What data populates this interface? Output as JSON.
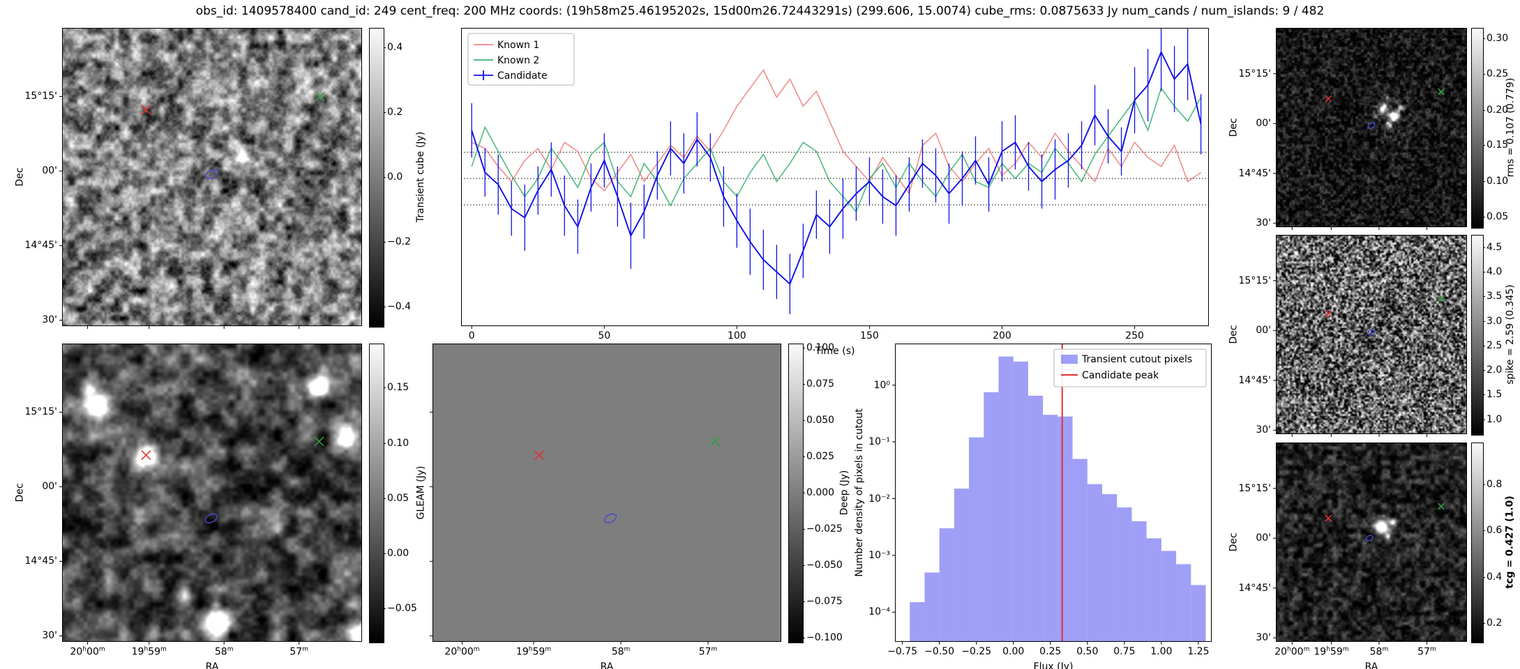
{
  "title": "obs_id: 1409578400 cand_id: 249 cent_freq: 200 MHz coords: (19h58m25.46195202s, 15d00m26.72443291s) (299.606, 15.0074) cube_rms: 0.0875633 Jy num_cands / num_islands: 9 / 482",
  "axis_labels": {
    "ra": "RA",
    "dec": "Dec"
  },
  "ra_ticks": [
    {
      "label": "20h00m",
      "pos": 0.085
    },
    {
      "label": "19h59m",
      "pos": 0.29
    },
    {
      "label": "58m",
      "pos": 0.54
    },
    {
      "label": "57m",
      "pos": 0.79
    }
  ],
  "dec_ticks": [
    {
      "label": "15°15'",
      "pos": 0.23
    },
    {
      "label": "00'",
      "pos": 0.48
    },
    {
      "label": "14°45'",
      "pos": 0.73
    },
    {
      "label": "30'",
      "pos": 0.98
    }
  ],
  "chart_data": [
    {
      "id": "transient",
      "type": "heatmap",
      "name": "Transient cube cutout",
      "xlabel": null,
      "ylabel": "Dec",
      "ra_labels": false,
      "dec_labels": true,
      "colorbar": {
        "label": "Transient cube (Jy)",
        "emphasis": false,
        "ticks": [
          {
            "label": "0.4",
            "pos": 0.065
          },
          {
            "label": "0.2",
            "pos": 0.283
          },
          {
            "label": "0.0",
            "pos": 0.5
          },
          {
            "label": "−0.2",
            "pos": 0.717
          },
          {
            "label": "−0.4",
            "pos": 0.935
          }
        ]
      },
      "markers": [
        {
          "name": "known-source-1",
          "shape": "x",
          "color": "#e03131",
          "x": 0.28,
          "y": 0.275
        },
        {
          "name": "known-source-2",
          "shape": "x",
          "color": "#2f9e44",
          "x": 0.86,
          "y": 0.23
        },
        {
          "name": "candidate",
          "shape": "ellipse",
          "color": "#4545d6",
          "x": 0.5,
          "y": 0.49
        }
      ]
    },
    {
      "id": "lightcurve",
      "type": "line",
      "name": "Candidate light curve",
      "xlabel": "Time (s)",
      "ylabel": "",
      "xlim": [
        -4,
        278
      ],
      "ylim": [
        -0.49,
        0.5
      ],
      "hlines": [
        0.0875,
        0.0,
        -0.0875
      ],
      "xticks": [
        {
          "label": "0",
          "value": 0
        },
        {
          "label": "50",
          "value": 50
        },
        {
          "label": "100",
          "value": 100
        },
        {
          "label": "150",
          "value": 150
        },
        {
          "label": "200",
          "value": 200
        },
        {
          "label": "250",
          "value": 250
        }
      ],
      "x": [
        0,
        5,
        10,
        15,
        20,
        25,
        30,
        35,
        40,
        45,
        50,
        55,
        60,
        65,
        70,
        75,
        80,
        85,
        90,
        95,
        100,
        105,
        110,
        115,
        120,
        125,
        130,
        135,
        140,
        145,
        150,
        155,
        160,
        165,
        170,
        175,
        180,
        185,
        190,
        195,
        200,
        205,
        210,
        215,
        220,
        225,
        230,
        235,
        240,
        245,
        250,
        255,
        260,
        265,
        270,
        275
      ],
      "series": [
        {
          "name": "Known 1",
          "color": "#f08080",
          "values": [
            0.12,
            0.1,
            0.04,
            -0.01,
            0.06,
            0.1,
            0.03,
            0.12,
            0.09,
            0.0,
            -0.04,
            0.02,
            0.08,
            -0.01,
            0.05,
            0.11,
            0.07,
            0.14,
            0.09,
            0.16,
            0.24,
            0.3,
            0.36,
            0.27,
            0.33,
            0.24,
            0.29,
            0.19,
            0.09,
            0.04,
            -0.01,
            0.07,
            0.01,
            -0.05,
            0.11,
            0.15,
            0.04,
            -0.01,
            0.05,
            0.1,
            0.01,
            0.05,
            0.12,
            0.07,
            0.15,
            0.09,
            0.04,
            -0.01,
            0.1,
            0.04,
            0.12,
            0.07,
            0.04,
            0.11,
            -0.01,
            0.02
          ]
        },
        {
          "name": "Known 2",
          "color": "#3cb371",
          "values": [
            0.04,
            0.17,
            0.09,
            0.01,
            -0.06,
            0.0,
            0.1,
            0.04,
            -0.03,
            0.08,
            0.12,
            -0.01,
            -0.06,
            0.05,
            -0.01,
            -0.09,
            0.0,
            0.05,
            0.1,
            -0.01,
            -0.06,
            0.02,
            0.08,
            -0.01,
            0.05,
            0.12,
            0.09,
            -0.01,
            -0.06,
            -0.11,
            0.0,
            0.05,
            -0.03,
            0.05,
            -0.01,
            -0.06,
            0.02,
            0.08,
            -0.01,
            -0.03,
            0.05,
            0.0,
            0.05,
            0.02,
            0.1,
            0.05,
            -0.01,
            0.08,
            0.14,
            0.2,
            0.26,
            0.16,
            0.3,
            0.24,
            0.19,
            0.27
          ]
        },
        {
          "name": "Candidate",
          "color": "#0f0fe8",
          "values": [
            0.16,
            0.02,
            -0.02,
            -0.1,
            -0.13,
            -0.04,
            0.03,
            -0.09,
            -0.16,
            -0.03,
            0.06,
            -0.06,
            -0.19,
            -0.11,
            0.01,
            0.1,
            0.05,
            0.13,
            0.07,
            -0.06,
            -0.14,
            -0.21,
            -0.27,
            -0.31,
            -0.35,
            -0.24,
            -0.12,
            -0.16,
            -0.1,
            -0.05,
            -0.01,
            -0.06,
            -0.09,
            -0.02,
            0.05,
            0.01,
            -0.05,
            0.0,
            0.06,
            -0.02,
            0.09,
            0.12,
            0.04,
            -0.01,
            0.03,
            0.06,
            0.11,
            0.21,
            0.14,
            0.09,
            0.26,
            0.31,
            0.42,
            0.33,
            0.38,
            0.18
          ],
          "errors": [
            0.09,
            0.08,
            0.1,
            0.09,
            0.11,
            0.08,
            0.09,
            0.1,
            0.09,
            0.08,
            0.09,
            0.1,
            0.11,
            0.09,
            0.08,
            0.09,
            0.1,
            0.09,
            0.08,
            0.1,
            0.09,
            0.11,
            0.1,
            0.09,
            0.1,
            0.09,
            0.08,
            0.09,
            0.1,
            0.09,
            0.08,
            0.09,
            0.1,
            0.09,
            0.08,
            0.09,
            0.1,
            0.09,
            0.08,
            0.09,
            0.1,
            0.09,
            0.08,
            0.09,
            0.1,
            0.09,
            0.08,
            0.1,
            0.09,
            0.08,
            0.11,
            0.12,
            0.13,
            0.11,
            0.12,
            0.1
          ]
        }
      ],
      "legend_position": "upper left"
    },
    {
      "id": "rms",
      "type": "heatmap",
      "name": "rms map",
      "xlabel": null,
      "ylabel": "Dec",
      "ra_labels": false,
      "dec_labels": true,
      "colorbar": {
        "label": "rms = 0.107 (0.779)",
        "emphasis": false,
        "ticks": [
          {
            "label": "0.30",
            "pos": 0.054
          },
          {
            "label": "0.25",
            "pos": 0.232
          },
          {
            "label": "0.20",
            "pos": 0.411
          },
          {
            "label": "0.15",
            "pos": 0.589
          },
          {
            "label": "0.10",
            "pos": 0.768
          },
          {
            "label": "0.05",
            "pos": 0.946
          }
        ]
      },
      "markers": [
        {
          "name": "known-source-1",
          "shape": "x",
          "color": "#e03131",
          "x": 0.275,
          "y": 0.355
        },
        {
          "name": "known-source-2",
          "shape": "x",
          "color": "#2f9e44",
          "x": 0.865,
          "y": 0.32
        },
        {
          "name": "candidate",
          "shape": "ellipse",
          "color": "#4545d6",
          "x": 0.5,
          "y": 0.49
        }
      ]
    },
    {
      "id": "spike",
      "type": "heatmap",
      "name": "spike map",
      "xlabel": null,
      "ylabel": "Dec",
      "ra_labels": false,
      "dec_labels": true,
      "colorbar": {
        "label": "spike = 2.59 (0.345)",
        "emphasis": false,
        "ticks": [
          {
            "label": "4.5",
            "pos": 0.062
          },
          {
            "label": "4.0",
            "pos": 0.185
          },
          {
            "label": "3.5",
            "pos": 0.309
          },
          {
            "label": "3.0",
            "pos": 0.432
          },
          {
            "label": "2.5",
            "pos": 0.556
          },
          {
            "label": "2.0",
            "pos": 0.679
          },
          {
            "label": "1.5",
            "pos": 0.802
          },
          {
            "label": "1.0",
            "pos": 0.926
          }
        ]
      },
      "markers": [
        {
          "name": "known-source-1",
          "shape": "x",
          "color": "#e03131",
          "x": 0.275,
          "y": 0.395
        },
        {
          "name": "known-source-2",
          "shape": "x",
          "color": "#2f9e44",
          "x": 0.865,
          "y": 0.32
        },
        {
          "name": "candidate",
          "shape": "ellipse",
          "color": "#4545d6",
          "x": 0.5,
          "y": 0.49
        }
      ]
    },
    {
      "id": "tcg",
      "type": "heatmap",
      "name": "tcg map",
      "xlabel": "RA",
      "ylabel": "Dec",
      "ra_labels": true,
      "dec_labels": true,
      "colorbar": {
        "label": "tcg = 0.427 (1.0)",
        "emphasis": true,
        "ticks": [
          {
            "label": "0.8",
            "pos": 0.209
          },
          {
            "label": "0.6",
            "pos": 0.442
          },
          {
            "label": "0.4",
            "pos": 0.674
          },
          {
            "label": "0.2",
            "pos": 0.907
          }
        ]
      },
      "markers": [
        {
          "name": "known-source-1",
          "shape": "x",
          "color": "#e03131",
          "x": 0.275,
          "y": 0.38
        },
        {
          "name": "known-source-2",
          "shape": "x",
          "color": "#2f9e44",
          "x": 0.865,
          "y": 0.32
        },
        {
          "name": "candidate",
          "shape": "ellipse",
          "color": "#4545d6",
          "x": 0.49,
          "y": 0.48
        }
      ]
    },
    {
      "id": "gleam",
      "type": "heatmap",
      "name": "GLEAM cutout",
      "xlabel": "RA",
      "ylabel": "Dec",
      "ra_labels": true,
      "dec_labels": true,
      "colorbar": {
        "label": "GLEAM (Jy)",
        "emphasis": false,
        "ticks": [
          {
            "label": "0.15",
            "pos": 0.148
          },
          {
            "label": "0.10",
            "pos": 0.333
          },
          {
            "label": "0.05",
            "pos": 0.519
          },
          {
            "label": "0.00",
            "pos": 0.704
          },
          {
            "label": "−0.05",
            "pos": 0.889
          }
        ]
      },
      "markers": [
        {
          "name": "known-source-1",
          "shape": "x",
          "color": "#e03131",
          "x": 0.28,
          "y": 0.374
        },
        {
          "name": "known-source-2",
          "shape": "x",
          "color": "#2f9e44",
          "x": 0.857,
          "y": 0.328
        },
        {
          "name": "candidate",
          "shape": "ellipse",
          "color": "#4545d6",
          "x": 0.497,
          "y": 0.586
        }
      ]
    },
    {
      "id": "deep",
      "type": "heatmap",
      "name": "Deep image cutout",
      "xlabel": "RA",
      "ylabel": null,
      "ra_labels": true,
      "dec_labels": false,
      "colorbar": {
        "label": "Deep (Jy)",
        "emphasis": false,
        "ticks": [
          {
            "label": "0.100",
            "pos": 0.015
          },
          {
            "label": "0.075",
            "pos": 0.136
          },
          {
            "label": "0.050",
            "pos": 0.257
          },
          {
            "label": "0.025",
            "pos": 0.379
          },
          {
            "label": "0.000",
            "pos": 0.5
          },
          {
            "label": "−0.025",
            "pos": 0.621
          },
          {
            "label": "−0.050",
            "pos": 0.743
          },
          {
            "label": "−0.075",
            "pos": 0.864
          },
          {
            "label": "−0.100",
            "pos": 0.985
          }
        ]
      },
      "markers": [
        {
          "name": "known-source-1",
          "shape": "x",
          "color": "#e03131",
          "x": 0.306,
          "y": 0.374
        },
        {
          "name": "known-source-2",
          "shape": "x",
          "color": "#2f9e44",
          "x": 0.81,
          "y": 0.328
        },
        {
          "name": "candidate",
          "shape": "ellipse",
          "color": "#4545d6",
          "x": 0.51,
          "y": 0.586
        }
      ]
    },
    {
      "id": "flux-histogram",
      "type": "bar",
      "name": "Flux histogram of transient cutout pixels",
      "xlabel": "Flux (Jy)",
      "ylabel": "Number density of pixels in cutout",
      "xlim": [
        -0.8,
        1.34
      ],
      "ylog": true,
      "ylim": [
        3e-05,
        5.4
      ],
      "bin_width": 0.1,
      "bin_centers": [
        -0.65,
        -0.55,
        -0.45,
        -0.35,
        -0.25,
        -0.15,
        -0.05,
        0.05,
        0.15,
        0.25,
        0.35,
        0.45,
        0.55,
        0.65,
        0.75,
        0.85,
        0.95,
        1.05,
        1.15,
        1.25
      ],
      "densities": [
        0.00015,
        0.0005,
        0.003,
        0.015,
        0.12,
        0.75,
        3.2,
        2.6,
        0.65,
        0.3,
        0.28,
        0.05,
        0.018,
        0.012,
        0.007,
        0.004,
        0.002,
        0.0012,
        0.0007,
        0.0003
      ],
      "bar_color": "#6b6bf2",
      "bar_alpha": 0.65,
      "vline": {
        "x": 0.33,
        "color": "#e03131",
        "label": "Candidate peak"
      },
      "legend": [
        "Transient cutout pixels",
        "Candidate peak"
      ],
      "xticks": [
        {
          "label": "−0.75",
          "value": -0.75
        },
        {
          "label": "−0.50",
          "value": -0.5
        },
        {
          "label": "−0.25",
          "value": -0.25
        },
        {
          "label": "0.00",
          "value": 0
        },
        {
          "label": "0.25",
          "value": 0.25
        },
        {
          "label": "0.50",
          "value": 0.5
        },
        {
          "label": "0.75",
          "value": 0.75
        },
        {
          "label": "1.00",
          "value": 1
        },
        {
          "label": "1.25",
          "value": 1.25
        }
      ],
      "yticks": [
        {
          "label": "10⁰",
          "value": 1
        },
        {
          "label": "10⁻¹",
          "value": 0.1
        },
        {
          "label": "10⁻²",
          "value": 0.01
        },
        {
          "label": "10⁻³",
          "value": 0.001
        },
        {
          "label": "10⁻⁴",
          "value": 0.0001
        }
      ]
    }
  ]
}
